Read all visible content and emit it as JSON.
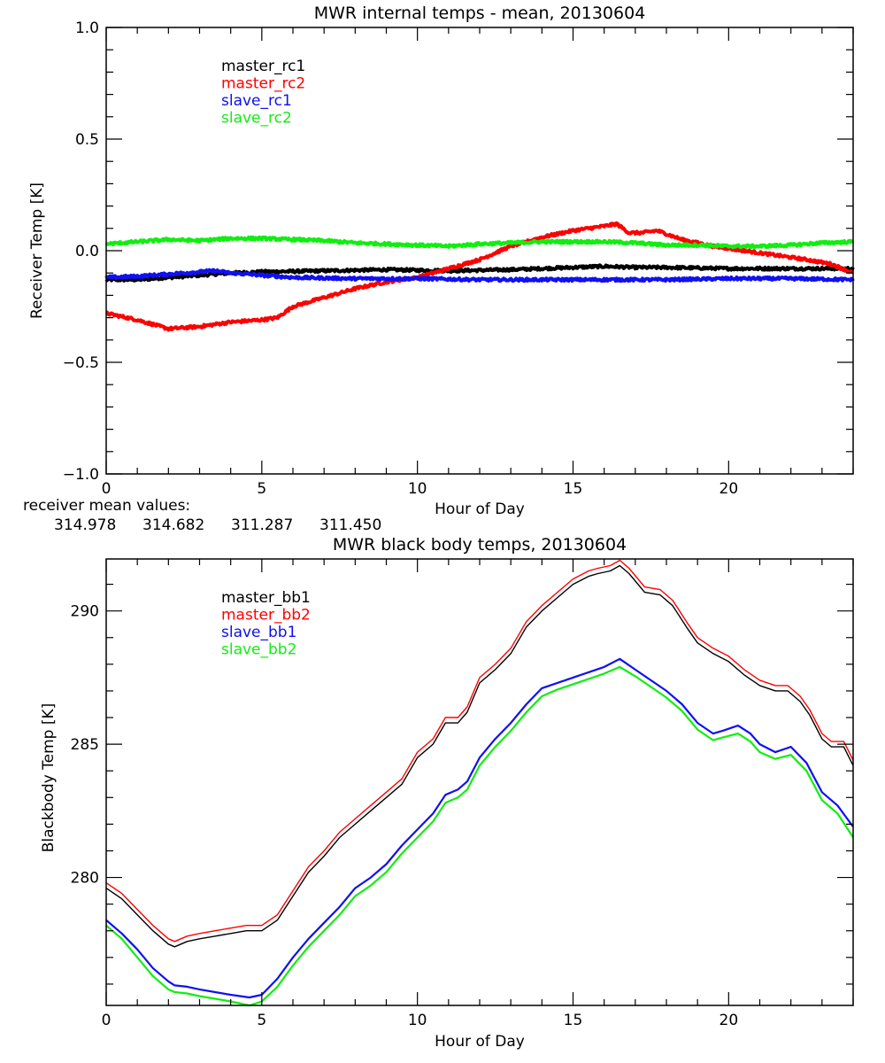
{
  "colors": {
    "black": "#000000",
    "red": "#ff0000",
    "blue": "#1010f0",
    "green": "#10ee10"
  },
  "mean_values": {
    "label": "receiver mean values:",
    "values": [
      "314.978",
      "314.682",
      "311.287",
      "311.450"
    ]
  },
  "chart_data": [
    {
      "type": "line",
      "title": "MWR internal temps - mean, 20130604",
      "xlabel": "Hour of Day",
      "ylabel": "Receiver Temp [K]",
      "xlim": [
        0,
        24
      ],
      "ylim": [
        -1.0,
        1.0
      ],
      "x_ticks": [
        0,
        5,
        10,
        15,
        20
      ],
      "x_tick_labels": [
        "0",
        "5",
        "10",
        "15",
        "20"
      ],
      "x_minor_step": 1,
      "y_ticks": [
        -1.0,
        -0.5,
        0.0,
        0.5,
        1.0
      ],
      "y_tick_labels": [
        "−1.0",
        "−0.5",
        "0.0",
        "0.5",
        "1.0"
      ],
      "y_minor_step": 0.1,
      "legend_position": "top-left",
      "grid": false,
      "noisy": true,
      "series": [
        {
          "name": "master_rc1",
          "color": "#000000",
          "x": [
            0,
            1,
            2,
            3,
            4,
            5,
            7,
            9,
            11,
            13,
            14,
            15,
            16,
            17,
            18,
            20,
            22,
            24
          ],
          "y": [
            -0.13,
            -0.13,
            -0.12,
            -0.11,
            -0.1,
            -0.095,
            -0.09,
            -0.085,
            -0.09,
            -0.085,
            -0.08,
            -0.075,
            -0.07,
            -0.075,
            -0.075,
            -0.08,
            -0.08,
            -0.08
          ]
        },
        {
          "name": "master_rc2",
          "color": "#ff0000",
          "x": [
            0,
            1,
            2,
            3,
            4,
            5,
            5.5,
            6,
            7,
            8,
            9,
            10,
            11,
            12,
            13,
            14,
            15,
            16,
            16.4,
            16.8,
            17.2,
            17.7,
            18.5,
            19.5,
            20.5,
            21.5,
            22.5,
            23.3,
            24
          ],
          "y": [
            -0.28,
            -0.31,
            -0.35,
            -0.34,
            -0.32,
            -0.31,
            -0.3,
            -0.25,
            -0.21,
            -0.17,
            -0.14,
            -0.12,
            -0.08,
            -0.04,
            0.02,
            0.06,
            0.09,
            0.11,
            0.12,
            0.08,
            0.08,
            0.09,
            0.05,
            0.02,
            0.0,
            -0.02,
            -0.04,
            -0.06,
            -0.1
          ]
        },
        {
          "name": "slave_rc1",
          "color": "#1010f0",
          "x": [
            0,
            1,
            2,
            3,
            3.5,
            4,
            5,
            6,
            8,
            10,
            12,
            14,
            16,
            18,
            20,
            22,
            24
          ],
          "y": [
            -0.12,
            -0.115,
            -0.105,
            -0.095,
            -0.09,
            -0.1,
            -0.11,
            -0.12,
            -0.125,
            -0.125,
            -0.13,
            -0.13,
            -0.13,
            -0.13,
            -0.125,
            -0.125,
            -0.13
          ]
        },
        {
          "name": "slave_rc2",
          "color": "#10ee10",
          "x": [
            0,
            1,
            2,
            3,
            4,
            5,
            6,
            7,
            8,
            9,
            10,
            11,
            12,
            13,
            14,
            15,
            16,
            17,
            18,
            19,
            20,
            21,
            22,
            23,
            24
          ],
          "y": [
            0.03,
            0.04,
            0.05,
            0.045,
            0.055,
            0.055,
            0.05,
            0.045,
            0.035,
            0.03,
            0.025,
            0.02,
            0.03,
            0.035,
            0.04,
            0.04,
            0.04,
            0.035,
            0.025,
            0.025,
            0.02,
            0.02,
            0.025,
            0.035,
            0.04
          ]
        }
      ]
    },
    {
      "type": "line",
      "title": "MWR black body temps, 20130604",
      "xlabel": "Hour of Day",
      "ylabel": "Blackbody Temp [K]",
      "xlim": [
        0,
        24
      ],
      "ylim": [
        275.2,
        291.95
      ],
      "x_ticks": [
        0,
        5,
        10,
        15,
        20
      ],
      "x_tick_labels": [
        "0",
        "5",
        "10",
        "15",
        "20"
      ],
      "x_minor_step": 1,
      "y_ticks": [
        280,
        285,
        290
      ],
      "y_tick_labels": [
        "280",
        "285",
        "290"
      ],
      "y_minor_step": 1,
      "legend_position": "top-left",
      "grid": false,
      "noisy": false,
      "series": [
        {
          "name": "master_bb1",
          "color": "#000000",
          "x": [
            0,
            0.5,
            1,
            1.5,
            2,
            2.2,
            2.6,
            3,
            3.5,
            4,
            4.5,
            5,
            5.5,
            6,
            6.5,
            7,
            7.5,
            8,
            8.5,
            9,
            9.5,
            10,
            10.5,
            10.9,
            11.3,
            11.6,
            12,
            12.5,
            13,
            13.5,
            14,
            14.5,
            15,
            15.5,
            15.8,
            16.2,
            16.5,
            16.8,
            17.3,
            17.8,
            18.2,
            18.7,
            19,
            19.5,
            20,
            20.5,
            21,
            21.5,
            21.9,
            22.3,
            22.6,
            23,
            23.3,
            23.7,
            24
          ],
          "y": [
            279.6,
            279.2,
            278.6,
            278.0,
            277.5,
            277.4,
            277.6,
            277.7,
            277.8,
            277.9,
            278.0,
            278.0,
            278.4,
            279.3,
            280.2,
            280.8,
            281.5,
            282.0,
            282.5,
            283.0,
            283.5,
            284.5,
            285.0,
            285.8,
            285.8,
            286.2,
            287.3,
            287.8,
            288.4,
            289.4,
            290.0,
            290.5,
            291.0,
            291.3,
            291.4,
            291.5,
            291.7,
            291.4,
            290.7,
            290.6,
            290.2,
            289.3,
            288.8,
            288.4,
            288.1,
            287.6,
            287.2,
            287.0,
            287.0,
            286.6,
            286.1,
            285.2,
            284.9,
            284.9,
            284.2
          ]
        },
        {
          "name": "master_bb2",
          "color": "#ff0000",
          "x": [
            0,
            0.5,
            1,
            1.5,
            2,
            2.2,
            2.6,
            3,
            3.5,
            4,
            4.5,
            5,
            5.5,
            6,
            6.5,
            7,
            7.5,
            8,
            8.5,
            9,
            9.5,
            10,
            10.5,
            10.9,
            11.3,
            11.6,
            12,
            12.5,
            13,
            13.5,
            14,
            14.5,
            15,
            15.5,
            15.8,
            16.2,
            16.5,
            16.8,
            17.3,
            17.8,
            18.2,
            18.7,
            19,
            19.5,
            20,
            20.5,
            21,
            21.5,
            21.9,
            22.3,
            22.6,
            23,
            23.3,
            23.7,
            24
          ],
          "y": [
            279.8,
            279.4,
            278.8,
            278.2,
            277.7,
            277.6,
            277.8,
            277.9,
            278.0,
            278.1,
            278.2,
            278.2,
            278.6,
            279.5,
            280.4,
            281.0,
            281.7,
            282.2,
            282.7,
            283.2,
            283.7,
            284.7,
            285.2,
            286.0,
            286.0,
            286.4,
            287.5,
            288.0,
            288.6,
            289.6,
            290.2,
            290.7,
            291.2,
            291.5,
            291.6,
            291.7,
            291.9,
            291.6,
            290.9,
            290.8,
            290.4,
            289.5,
            289.0,
            288.6,
            288.3,
            287.8,
            287.4,
            287.2,
            287.2,
            286.8,
            286.3,
            285.4,
            285.1,
            285.1,
            284.4
          ]
        },
        {
          "name": "slave_bb1",
          "color": "#1010f0",
          "x": [
            0,
            0.5,
            1,
            1.5,
            2,
            2.2,
            2.6,
            3,
            3.5,
            4,
            4.6,
            5,
            5.5,
            6,
            6.5,
            7,
            7.5,
            8,
            8.5,
            9,
            9.5,
            10,
            10.5,
            10.9,
            11.3,
            11.6,
            12,
            12.5,
            13,
            13.5,
            14,
            14.5,
            15,
            15.5,
            16,
            16.5,
            17,
            17.5,
            18,
            18.5,
            19,
            19.5,
            19.8,
            20.3,
            20.7,
            21,
            21.5,
            22,
            22.5,
            23,
            23.5,
            24
          ],
          "y": [
            278.4,
            277.9,
            277.3,
            276.6,
            276.1,
            275.95,
            275.9,
            275.8,
            275.7,
            275.6,
            275.5,
            275.6,
            276.2,
            277.0,
            277.7,
            278.3,
            278.9,
            279.6,
            280.0,
            280.5,
            281.2,
            281.8,
            282.4,
            283.1,
            283.3,
            283.6,
            284.5,
            285.2,
            285.8,
            286.5,
            287.1,
            287.3,
            287.5,
            287.7,
            287.9,
            288.2,
            287.8,
            287.4,
            287.0,
            286.5,
            285.8,
            285.4,
            285.5,
            285.7,
            285.4,
            285.0,
            284.7,
            284.9,
            284.3,
            283.2,
            282.7,
            281.9
          ]
        },
        {
          "name": "slave_bb2",
          "color": "#10ee10",
          "x": [
            0,
            0.5,
            1,
            1.5,
            2,
            2.2,
            2.6,
            3,
            3.5,
            4,
            4.6,
            5,
            5.5,
            6,
            6.5,
            7,
            7.5,
            8,
            8.5,
            9,
            9.5,
            10,
            10.5,
            10.9,
            11.3,
            11.6,
            12,
            12.5,
            13,
            13.5,
            14,
            14.5,
            15,
            15.5,
            16,
            16.5,
            17,
            17.5,
            18,
            18.5,
            19,
            19.5,
            19.8,
            20.3,
            20.7,
            21,
            21.5,
            22,
            22.5,
            23,
            23.5,
            24
          ],
          "y": [
            278.2,
            277.7,
            277.0,
            276.3,
            275.8,
            275.7,
            275.65,
            275.55,
            275.45,
            275.35,
            275.2,
            275.35,
            275.9,
            276.7,
            277.4,
            278.0,
            278.6,
            279.3,
            279.7,
            280.2,
            280.9,
            281.5,
            282.1,
            282.8,
            283.0,
            283.3,
            284.2,
            284.9,
            285.5,
            286.2,
            286.8,
            287.05,
            287.25,
            287.45,
            287.65,
            287.9,
            287.55,
            287.15,
            286.75,
            286.25,
            285.55,
            285.15,
            285.25,
            285.4,
            285.1,
            284.7,
            284.45,
            284.6,
            284.0,
            282.9,
            282.4,
            281.5
          ]
        }
      ]
    }
  ]
}
